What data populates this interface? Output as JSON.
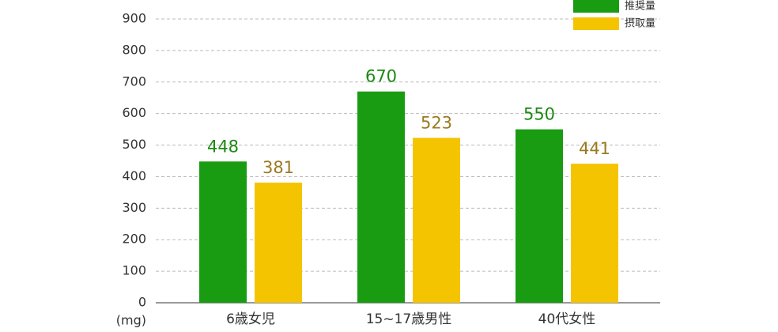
{
  "chart_data": {
    "type": "bar",
    "y_unit": "(mg)",
    "categories": [
      "6歳女児",
      "15~17歳男性",
      "40代女性"
    ],
    "series": [
      {
        "name": "推奨量",
        "color": "#1a9c12",
        "label_color": "#1a8a10",
        "values": [
          448,
          670,
          550
        ]
      },
      {
        "name": "摂取量",
        "color": "#f5c400",
        "label_color": "#9a7a20",
        "values": [
          381,
          523,
          441
        ]
      }
    ],
    "ylim": [
      0,
      900
    ],
    "yticks": [
      0,
      100,
      200,
      300,
      400,
      500,
      600,
      700,
      800,
      900
    ],
    "grid": true,
    "legend": "top-right"
  }
}
